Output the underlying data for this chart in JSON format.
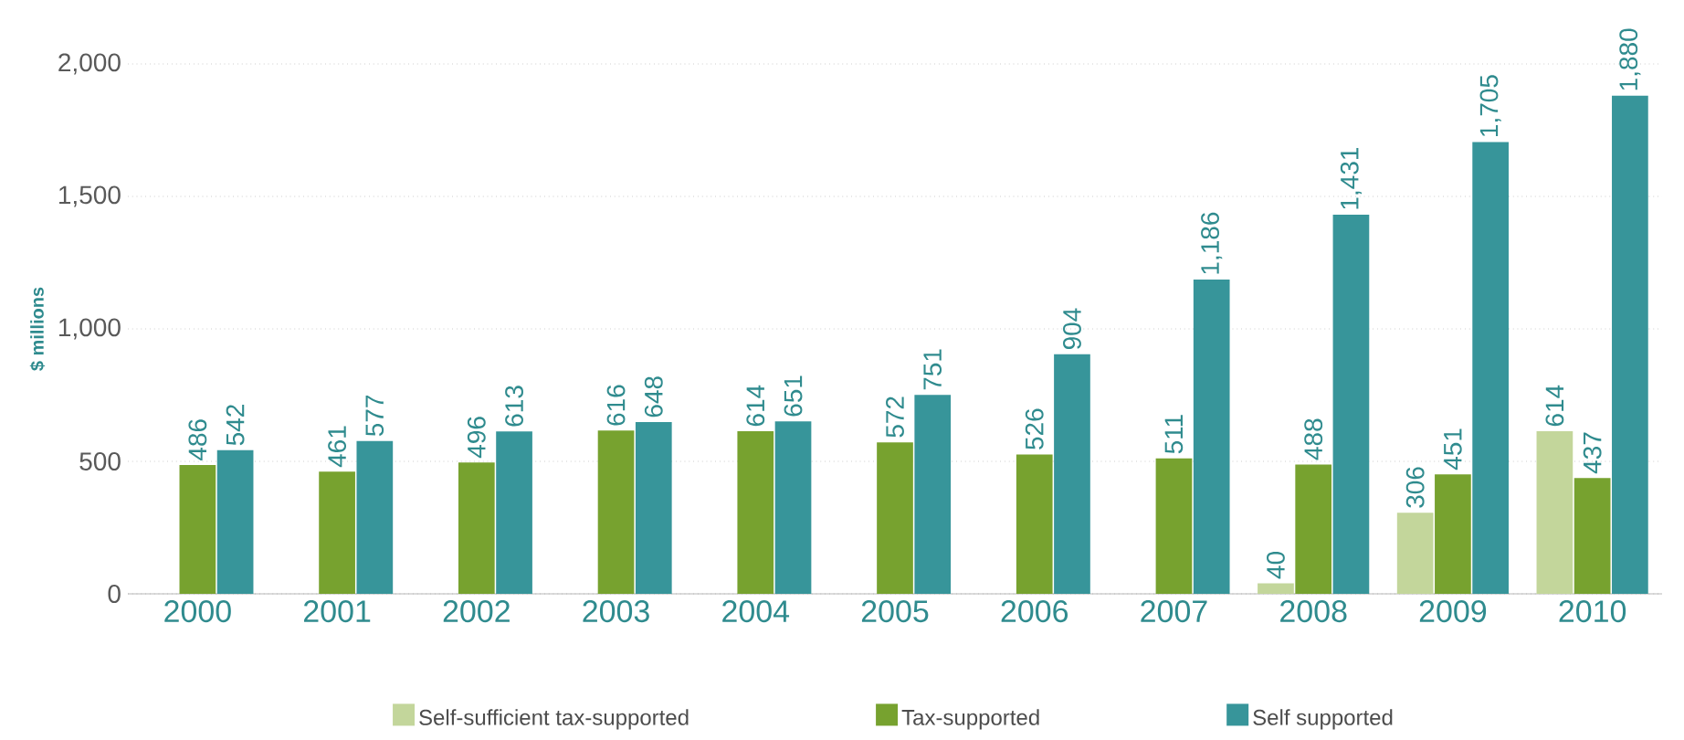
{
  "chart_data": {
    "type": "bar",
    "ylabel": "$ millions",
    "categories": [
      "2000",
      "2001",
      "2002",
      "2003",
      "2004",
      "2005",
      "2006",
      "2007",
      "2008",
      "2009",
      "2010"
    ],
    "series": [
      {
        "name": "Self-sufficient tax-supported",
        "color": "#c3d69b",
        "values": [
          null,
          null,
          null,
          null,
          null,
          null,
          null,
          null,
          40,
          306,
          614
        ],
        "value_labels": [
          null,
          null,
          null,
          null,
          null,
          null,
          null,
          null,
          "40",
          "306",
          "614"
        ]
      },
      {
        "name": "Tax-supported",
        "color": "#77a22f",
        "values": [
          486,
          461,
          496,
          616,
          614,
          572,
          526,
          511,
          488,
          451,
          437
        ],
        "value_labels": [
          "486",
          "461",
          "496",
          "616",
          "614",
          "572",
          "526",
          "511",
          "488",
          "451",
          "437"
        ]
      },
      {
        "name": "Self supported",
        "color": "#37959a",
        "values": [
          542,
          577,
          613,
          648,
          651,
          751,
          904,
          1186,
          1431,
          1705,
          1880
        ],
        "value_labels": [
          "542",
          "577",
          "613",
          "648",
          "651",
          "751",
          "904",
          "1,186",
          "1,431",
          "1,705",
          "1,880"
        ]
      }
    ],
    "ylim": [
      0,
      2000
    ],
    "yticks": [
      {
        "value": 0,
        "label": "0"
      },
      {
        "value": 500,
        "label": "500"
      },
      {
        "value": 1000,
        "label": "1,000"
      },
      {
        "value": 1500,
        "label": "1,500"
      },
      {
        "value": 2000,
        "label": "2,000"
      }
    ],
    "grid": "y",
    "legend": "bottom"
  }
}
